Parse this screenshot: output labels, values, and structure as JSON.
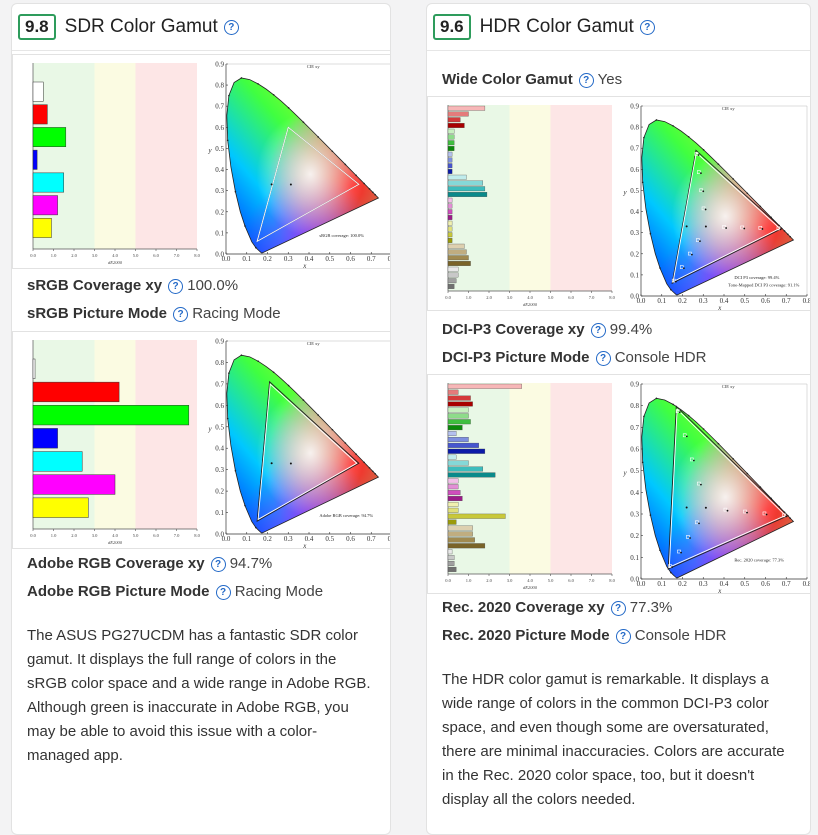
{
  "sdr": {
    "score": "9.8",
    "title": "SDR Color Gamut",
    "props": [
      {
        "label": "sRGB Coverage xy",
        "value": "100.0%"
      },
      {
        "label": "sRGB Picture Mode",
        "value": "Racing Mode"
      },
      {
        "label": "Adobe RGB Coverage xy",
        "value": "94.7%"
      },
      {
        "label": "Adobe RGB Picture Mode",
        "value": "Racing Mode"
      }
    ],
    "graph1_caption": "sRGB coverage: 100.0%",
    "graph2_caption": "Adobe RGB coverage: 94.7%",
    "description": "The ASUS PG27UCDM has a fantastic SDR color gamut. It displays the full range of colors in the sRGB color space and a wide range in Adobe RGB. Although green is inaccurate in Adobe RGB, you may be able to avoid this issue with a color-managed app."
  },
  "hdr": {
    "score": "9.6",
    "title": "HDR Color Gamut",
    "wide_label": "Wide Color Gamut",
    "wide_value": "Yes",
    "props": [
      {
        "label": "DCI-P3 Coverage xy",
        "value": "99.4%"
      },
      {
        "label": "DCI-P3 Picture Mode",
        "value": "Console HDR"
      },
      {
        "label": "Rec. 2020 Coverage xy",
        "value": "77.3%"
      },
      {
        "label": "Rec. 2020 Picture Mode",
        "value": "Console HDR"
      }
    ],
    "graph1_caption": "DCI P3 coverage: 99.4%",
    "graph1_caption2": "Tone-Mapped DCI P3 coverage: 91.1%",
    "graph2_caption": "Rec. 2020 coverage: 77.3%",
    "description": "The HDR color gamut is remarkable. It displays a wide range of colors in the common DCI-P3 color space, and even though some are oversaturated, there are minimal inaccuracies. Colors are accurate in the Rec. 2020 color space, too, but it doesn't display all the colors needed."
  },
  "chart_common": {
    "chart_title": "CIE xy",
    "de_axis_label": "dE2000",
    "de_ticks": [
      "0.0",
      "1.0",
      "2.0",
      "3.0",
      "4.0",
      "5.0",
      "6.0",
      "7.0",
      "8.0"
    ],
    "x_ticks": [
      "0.0",
      "0.1",
      "0.2",
      "0.3",
      "0.4",
      "0.5",
      "0.6",
      "0.7",
      "0.8"
    ],
    "y_ticks": [
      "0.0",
      "0.1",
      "0.2",
      "0.3",
      "0.4",
      "0.5",
      "0.6",
      "0.7",
      "0.8",
      "0.9"
    ],
    "xlabel": "x",
    "ylabel": "y"
  },
  "chart_data": [
    {
      "type": "bar",
      "name": "sRGB dE2000",
      "xlim": [
        0,
        8
      ],
      "categories": [
        "white",
        "red",
        "green",
        "blue",
        "cyan",
        "magenta",
        "yellow"
      ],
      "colors": [
        "#ffffff",
        "#ff0000",
        "#00ff00",
        "#0000ff",
        "#00ffff",
        "#ff00ff",
        "#ffff00"
      ],
      "values": [
        0.5,
        0.7,
        1.6,
        0.2,
        1.5,
        1.2,
        0.9
      ]
    },
    {
      "type": "bar",
      "name": "Adobe RGB dE2000",
      "xlim": [
        0,
        8
      ],
      "categories": [
        "white",
        "red",
        "green",
        "blue",
        "cyan",
        "magenta",
        "yellow"
      ],
      "colors": [
        "#ffffff",
        "#ff0000",
        "#00ff00",
        "#0000ff",
        "#00ffff",
        "#ff00ff",
        "#ffff00"
      ],
      "values": [
        0.1,
        4.2,
        7.6,
        1.2,
        2.4,
        4.0,
        2.7
      ]
    },
    {
      "type": "bar",
      "name": "DCI-P3 dE2000",
      "xlim": [
        0,
        8
      ],
      "values": [
        1.8,
        1.0,
        0.6,
        0.8,
        0.3,
        0.3,
        0.3,
        0.3,
        0.2,
        0.2,
        0.2,
        0.2,
        0.9,
        1.7,
        1.8,
        1.9,
        0.2,
        0.2,
        0.2,
        0.2,
        0.2,
        0.2,
        0.2,
        0.2,
        0.8,
        0.9,
        1.0,
        1.1,
        0.5,
        0.5,
        0.4,
        0.3
      ]
    },
    {
      "type": "bar",
      "name": "Rec. 2020 dE2000",
      "xlim": [
        0,
        8
      ],
      "values": [
        3.6,
        0.5,
        1.1,
        1.2,
        1.0,
        1.0,
        1.1,
        0.7,
        0.4,
        1.0,
        1.5,
        1.8,
        0.4,
        1.0,
        1.7,
        2.3,
        0.5,
        0.5,
        0.6,
        0.7,
        0.5,
        0.5,
        2.8,
        0.4,
        1.2,
        1.2,
        1.3,
        1.8,
        0.2,
        0.3,
        0.3,
        0.4
      ]
    }
  ]
}
